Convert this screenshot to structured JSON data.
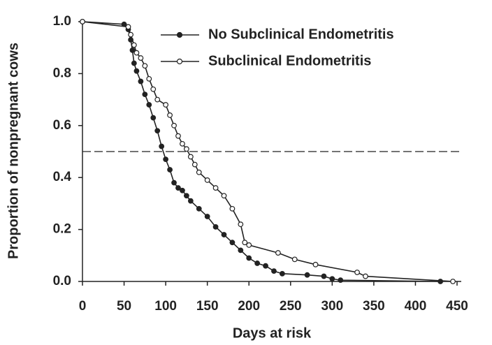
{
  "chart_data": {
    "type": "line",
    "x_label": "Days at risk",
    "y_label": "Proportion of nonpregnant cows",
    "xlim": [
      0,
      450
    ],
    "ylim": [
      0,
      1
    ],
    "xticks": [
      0,
      50,
      100,
      150,
      200,
      250,
      300,
      350,
      400,
      450
    ],
    "yticks": [
      {
        "value": 0,
        "label": "0.0"
      },
      0.2,
      0.4,
      0.6,
      0.8,
      {
        "value": 1,
        "label": "1.0"
      }
    ],
    "reference_line": 0.5,
    "legend": "top-right",
    "series": [
      {
        "name": "No Subclinical Endometritis",
        "color": "#222222",
        "marker": "filled",
        "x": [
          0,
          50,
          55,
          58,
          60,
          62,
          65,
          70,
          75,
          80,
          85,
          90,
          95,
          100,
          105,
          110,
          115,
          120,
          125,
          130,
          140,
          150,
          160,
          170,
          180,
          190,
          200,
          210,
          220,
          230,
          240,
          270,
          290,
          300,
          310,
          430
        ],
        "values": [
          1.0,
          0.99,
          0.97,
          0.93,
          0.89,
          0.84,
          0.81,
          0.77,
          0.72,
          0.68,
          0.63,
          0.58,
          0.52,
          0.47,
          0.43,
          0.38,
          0.36,
          0.35,
          0.33,
          0.31,
          0.28,
          0.25,
          0.21,
          0.18,
          0.15,
          0.12,
          0.09,
          0.07,
          0.06,
          0.04,
          0.03,
          0.025,
          0.02,
          0.01,
          0.005,
          0.0
        ]
      },
      {
        "name": "Subclinical Endometritis",
        "color": "#222222",
        "marker": "open",
        "x": [
          0,
          55,
          58,
          62,
          65,
          70,
          75,
          80,
          85,
          90,
          100,
          105,
          110,
          115,
          120,
          125,
          130,
          135,
          140,
          150,
          160,
          170,
          180,
          190,
          195,
          200,
          235,
          255,
          280,
          330,
          340,
          445
        ],
        "values": [
          1.0,
          0.98,
          0.95,
          0.91,
          0.88,
          0.86,
          0.83,
          0.78,
          0.74,
          0.7,
          0.68,
          0.64,
          0.6,
          0.56,
          0.53,
          0.51,
          0.48,
          0.45,
          0.42,
          0.39,
          0.36,
          0.33,
          0.28,
          0.22,
          0.15,
          0.14,
          0.11,
          0.085,
          0.065,
          0.035,
          0.02,
          0.0
        ]
      }
    ]
  }
}
